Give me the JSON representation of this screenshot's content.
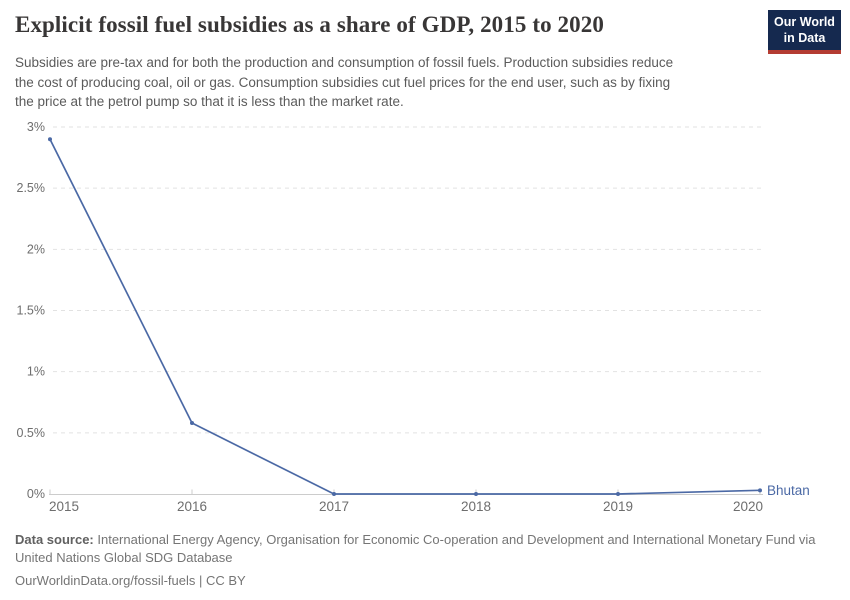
{
  "header": {
    "title": "Explicit fossil fuel subsidies as a share of GDP, 2015 to 2020",
    "logo": {
      "line1": "Our World",
      "line2": "in Data"
    }
  },
  "subtitle": {
    "lines": [
      "Subsidies are pre-tax and for both the production and consumption of fossil fuels. Production subsidies reduce",
      "the cost of producing coal, oil or gas. Consumption subsidies cut fuel prices for the end user, such as by fixing",
      "the price at the petrol pump so that it is less than the market rate."
    ]
  },
  "colors": {
    "line": "#4B69A5",
    "entity_label": "#4B69A5",
    "grid": "#e2e2e2",
    "axis": "#cccccc",
    "tick_text": "#6e6e6e",
    "logo_bg": "#15294F",
    "logo_accent": "#B43C32",
    "title_text": "#383636",
    "body_text": "#5b5b5b"
  },
  "chart_data": {
    "type": "line",
    "title": "Explicit fossil fuel subsidies as a share of GDP, 2015 to 2020",
    "x": [
      2015,
      2016,
      2017,
      2018,
      2019,
      2020
    ],
    "series": [
      {
        "name": "Bhutan",
        "values": [
          2.9,
          0.58,
          0,
          0,
          0,
          0.03
        ]
      }
    ],
    "xlabel": "",
    "ylabel": "",
    "ylim": [
      0,
      3
    ],
    "yticks": [
      0,
      0.5,
      1,
      1.5,
      2,
      2.5,
      3
    ],
    "ytick_suffix": "%",
    "grid": "horizontal-dashed",
    "legend_position": "end-of-line-label",
    "end_label": "Bhutan"
  },
  "footer": {
    "datasource_label": "Data source:",
    "datasource_line1": "International Energy Agency, Organisation for Economic Co-operation and Development and International Monetary Fund via",
    "datasource_line2": "United Nations Global SDG Database",
    "citation": "OurWorldinData.org/fossil-fuels | CC BY"
  }
}
